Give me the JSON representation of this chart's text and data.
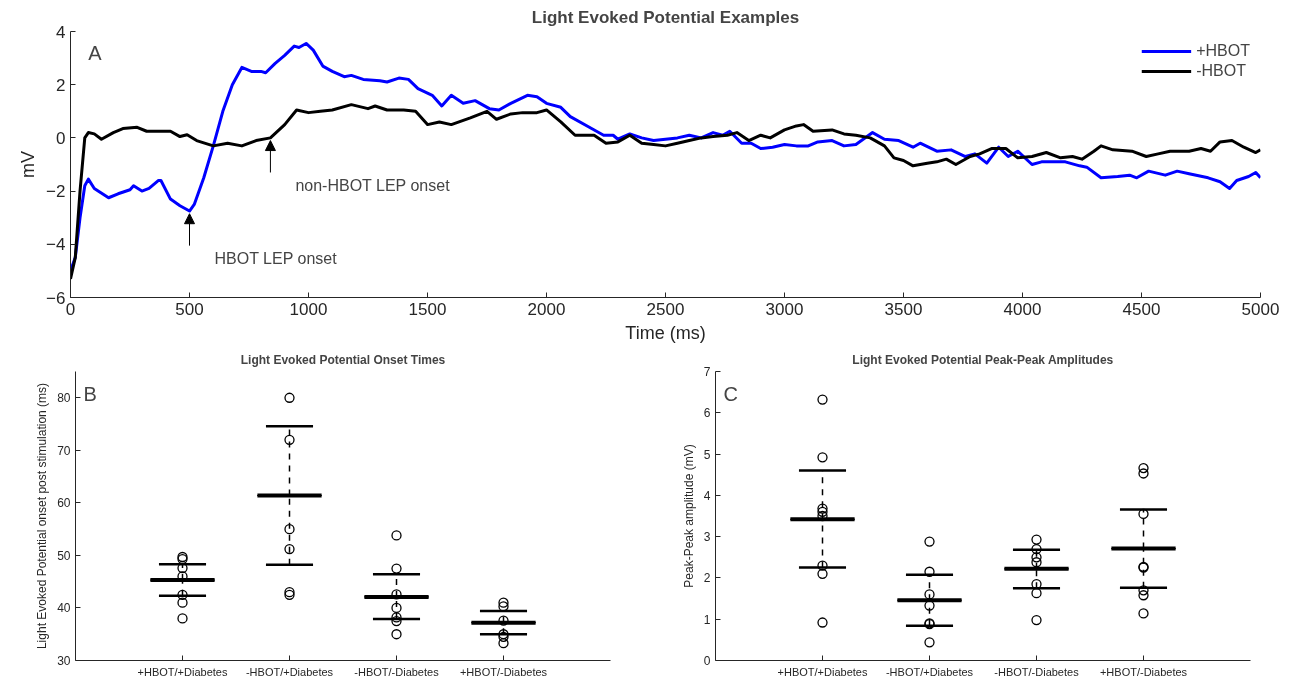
{
  "chart_data": [
    {
      "type": "line",
      "title": "Light Evoked Potential Examples",
      "xlabel": "Time (ms)",
      "ylabel": "mV",
      "xlim": [
        0,
        5000
      ],
      "xticks": [
        0,
        500,
        1000,
        1500,
        2000,
        2500,
        3000,
        3500,
        4000,
        4500,
        5000
      ],
      "ylim": [
        -6,
        4
      ],
      "yticks": [
        -6,
        -4,
        -2,
        0,
        2,
        4
      ],
      "grid": false,
      "legend": "top right",
      "line_style": "solid",
      "annotations": [
        "A",
        {
          "text": "HBOT LEP onset",
          "x": 500,
          "y": -2.75
        },
        {
          "text": "non-HBOT LEP onset",
          "x": 840,
          "y": 0
        }
      ],
      "series": [
        {
          "name": "+HBOT",
          "color": "#0000ff",
          "x": [
            0,
            20,
            40,
            60,
            75,
            100,
            160,
            200,
            250,
            265,
            300,
            330,
            370,
            380,
            420,
            460,
            500,
            520,
            560,
            600,
            640,
            680,
            720,
            760,
            800,
            820,
            860,
            900,
            940,
            960,
            990,
            1020,
            1060,
            1100,
            1150,
            1180,
            1230,
            1300,
            1330,
            1380,
            1420,
            1460,
            1520,
            1560,
            1600,
            1650,
            1700,
            1760,
            1800,
            1850,
            1920,
            1960,
            2000,
            2060,
            2100,
            2180,
            2240,
            2280,
            2300,
            2350,
            2400,
            2450,
            2500,
            2550,
            2600,
            2650,
            2700,
            2740,
            2770,
            2820,
            2860,
            2900,
            2950,
            3000,
            3050,
            3100,
            3140,
            3200,
            3250,
            3300,
            3370,
            3420,
            3480,
            3540,
            3570,
            3640,
            3700,
            3760,
            3800,
            3850,
            3900,
            3940,
            3980,
            4040,
            4080,
            4180,
            4240,
            4270,
            4330,
            4400,
            4450,
            4480,
            4530,
            4600,
            4650,
            4700,
            4780,
            4830,
            4870,
            4900,
            4950,
            4980,
            5000
          ],
          "values": [
            -5.0,
            -4.5,
            -3,
            -1.8,
            -1.55,
            -1.9,
            -2.25,
            -2.1,
            -1.95,
            -1.8,
            -2.0,
            -1.9,
            -1.6,
            -1.6,
            -2.3,
            -2.55,
            -2.75,
            -2.5,
            -1.5,
            -0.3,
            1.0,
            2.0,
            2.65,
            2.5,
            2.5,
            2.45,
            2.8,
            3.1,
            3.45,
            3.4,
            3.55,
            3.3,
            2.7,
            2.5,
            2.3,
            2.35,
            2.2,
            2.15,
            2.1,
            2.25,
            2.2,
            1.85,
            1.6,
            1.2,
            1.6,
            1.3,
            1.4,
            1.1,
            1.05,
            1.3,
            1.6,
            1.55,
            1.3,
            1.15,
            0.8,
            0.4,
            0.1,
            0.1,
            -0.05,
            0.15,
            0,
            -0.1,
            -0.05,
            0.0,
            0.1,
            0.0,
            0.2,
            0.1,
            0.25,
            -0.2,
            -0.2,
            -0.4,
            -0.35,
            -0.25,
            -0.3,
            -0.3,
            -0.15,
            -0.1,
            -0.3,
            -0.25,
            0.2,
            -0.05,
            -0.1,
            -0.35,
            -0.2,
            -0.5,
            -0.45,
            -0.7,
            -0.6,
            -0.95,
            -0.35,
            -0.7,
            -0.5,
            -1.0,
            -0.9,
            -0.9,
            -1.05,
            -1.1,
            -1.5,
            -1.45,
            -1.4,
            -1.5,
            -1.25,
            -1.4,
            -1.25,
            -1.35,
            -1.5,
            -1.65,
            -1.9,
            -1.6,
            -1.45,
            -1.3,
            -1.5
          ]
        },
        {
          "name": "-HBOT",
          "color": "#000000",
          "x": [
            0,
            20,
            40,
            60,
            75,
            100,
            130,
            180,
            220,
            280,
            320,
            380,
            420,
            460,
            490,
            530,
            600,
            660,
            720,
            780,
            840,
            900,
            950,
            1000,
            1050,
            1100,
            1180,
            1250,
            1280,
            1330,
            1400,
            1450,
            1500,
            1550,
            1600,
            1680,
            1750,
            1790,
            1850,
            1900,
            1960,
            2000,
            2060,
            2120,
            2200,
            2250,
            2300,
            2350,
            2400,
            2450,
            2500,
            2550,
            2600,
            2650,
            2700,
            2760,
            2800,
            2850,
            2900,
            2940,
            3000,
            3050,
            3080,
            3120,
            3200,
            3250,
            3300,
            3360,
            3420,
            3460,
            3500,
            3540,
            3600,
            3640,
            3680,
            3720,
            3780,
            3820,
            3870,
            3930,
            3980,
            4040,
            4100,
            4160,
            4210,
            4250,
            4300,
            4330,
            4380,
            4460,
            4520,
            4570,
            4620,
            4700,
            4750,
            4790,
            4830,
            4880,
            4930,
            4980,
            5000
          ],
          "values": [
            -5.3,
            -4.5,
            -2,
            0,
            0.2,
            0.15,
            -0.05,
            0.2,
            0.35,
            0.4,
            0.25,
            0.25,
            0.25,
            0.05,
            0.12,
            -0.1,
            -0.3,
            -0.2,
            -0.3,
            -0.1,
            0,
            0.5,
            1.05,
            0.95,
            1.0,
            1.05,
            1.25,
            1.1,
            1.2,
            1.05,
            1.05,
            1.0,
            0.5,
            0.6,
            0.5,
            0.75,
            1.0,
            0.7,
            0.9,
            0.95,
            0.95,
            1.05,
            0.6,
            0.1,
            0.1,
            -0.2,
            -0.15,
            0.1,
            -0.2,
            -0.25,
            -0.3,
            -0.2,
            -0.1,
            0.0,
            0.05,
            0.1,
            0.2,
            -0.1,
            0.1,
            0.0,
            0.3,
            0.45,
            0.5,
            0.25,
            0.3,
            0.15,
            0.1,
            0.0,
            -0.3,
            -0.75,
            -0.85,
            -1.05,
            -0.95,
            -0.9,
            -0.8,
            -1.0,
            -0.7,
            -0.6,
            -0.4,
            -0.4,
            -0.75,
            -0.7,
            -0.55,
            -0.75,
            -0.7,
            -0.8,
            -0.5,
            -0.3,
            -0.45,
            -0.5,
            -0.7,
            -0.6,
            -0.5,
            -0.5,
            -0.4,
            -0.5,
            -0.15,
            -0.1,
            -0.35,
            -0.55,
            -0.45
          ]
        }
      ]
    },
    {
      "type": "scatter",
      "title": "Light Evoked Potential Onset Times",
      "ylabel": "Light Evoked Potential onset post stimulation (ms)",
      "categories": [
        "+HBOT/+Diabetes",
        "-HBOT/+Diabetes",
        "-HBOT/-Diabetes",
        "+HBOT/-Diabetes"
      ],
      "ylim": [
        30,
        85
      ],
      "yticks": [
        30,
        40,
        50,
        60,
        70,
        80
      ],
      "grid": false,
      "annotations": [
        "B"
      ],
      "series": [
        {
          "type": "scatter",
          "marker": "circle",
          "color": "#000000",
          "x": [
            "+HBOT/+Diabetes",
            "+HBOT/+Diabetes",
            "+HBOT/+Diabetes",
            "+HBOT/+Diabetes",
            "+HBOT/+Diabetes",
            "+HBOT/+Diabetes",
            "+HBOT/+Diabetes",
            "-HBOT/+Diabetes",
            "-HBOT/+Diabetes",
            "-HBOT/+Diabetes",
            "-HBOT/+Diabetes",
            "-HBOT/+Diabetes",
            "-HBOT/+Diabetes",
            "-HBOT/-Diabetes",
            "-HBOT/-Diabetes",
            "-HBOT/-Diabetes",
            "-HBOT/-Diabetes",
            "-HBOT/-Diabetes",
            "-HBOT/-Diabetes",
            "-HBOT/-Diabetes",
            "+HBOT/-Diabetes",
            "+HBOT/-Diabetes",
            "+HBOT/-Diabetes",
            "+HBOT/-Diabetes",
            "+HBOT/-Diabetes",
            "+HBOT/-Diabetes"
          ],
          "values": [
            49.7,
            49.3,
            47.6,
            46,
            42.5,
            41,
            38,
            80,
            72,
            55,
            51.2,
            43,
            42.5,
            53.8,
            47.5,
            42.6,
            40,
            38.2,
            37.5,
            35,
            41,
            40.3,
            37.6,
            35,
            34.5,
            33.3
          ]
        },
        {
          "type": "box",
          "line_style": "dashed",
          "color": "#000000",
          "boxes": [
            {
              "low": 42.3,
              "q1": 45.3,
              "median": 45.3,
              "q3": 45.3,
              "high": 48.3
            },
            {
              "low": 48.2,
              "q1": 61.4,
              "median": 61.4,
              "q3": 61.4,
              "high": 74.6
            },
            {
              "low": 37.9,
              "q1": 42.1,
              "median": 42.1,
              "q3": 42.1,
              "high": 46.4
            },
            {
              "low": 35,
              "q1": 37.2,
              "median": 37.2,
              "q3": 37.2,
              "high": 39.4
            }
          ]
        }
      ]
    },
    {
      "type": "scatter",
      "title": "Light Evoked Potential Peak-Peak Amplitudes",
      "ylabel": "Peak-Peak amplitude (mV)",
      "categories": [
        "+HBOT/+Diabetes",
        "-HBOT/+Diabetes",
        "-HBOT/-Diabetes",
        "+HBOT/-Diabetes"
      ],
      "ylim": [
        0,
        7
      ],
      "yticks": [
        0,
        1,
        2,
        3,
        4,
        5,
        6,
        7
      ],
      "grid": false,
      "annotations": [
        "C"
      ],
      "series": [
        {
          "type": "scatter",
          "marker": "circle",
          "color": "#000000",
          "x": [
            "+HBOT/+Diabetes",
            "+HBOT/+Diabetes",
            "+HBOT/+Diabetes",
            "+HBOT/+Diabetes",
            "+HBOT/+Diabetes",
            "+HBOT/+Diabetes",
            "+HBOT/+Diabetes",
            "+HBOT/+Diabetes",
            "-HBOT/+Diabetes",
            "-HBOT/+Diabetes",
            "-HBOT/+Diabetes",
            "-HBOT/+Diabetes",
            "-HBOT/+Diabetes",
            "-HBOT/+Diabetes",
            "-HBOT/+Diabetes",
            "-HBOT/-Diabetes",
            "-HBOT/-Diabetes",
            "-HBOT/-Diabetes",
            "-HBOT/-Diabetes",
            "-HBOT/-Diabetes",
            "-HBOT/-Diabetes",
            "-HBOT/-Diabetes",
            "+HBOT/-Diabetes",
            "+HBOT/-Diabetes",
            "+HBOT/-Diabetes",
            "+HBOT/-Diabetes",
            "+HBOT/-Diabetes",
            "+HBOT/-Diabetes",
            "+HBOT/-Diabetes",
            "+HBOT/-Diabetes"
          ],
          "values": [
            6.32,
            4.92,
            3.68,
            3.6,
            3.5,
            2.3,
            2.1,
            0.92,
            2.88,
            2.15,
            1.6,
            1.33,
            0.9,
            0.88,
            0.44,
            2.93,
            2.7,
            2.5,
            2.38,
            1.85,
            1.63,
            0.98,
            4.66,
            4.53,
            3.55,
            2.27,
            2.25,
            1.7,
            1.58,
            1.14
          ]
        },
        {
          "type": "box",
          "line_style": "dashed",
          "color": "#000000",
          "boxes": [
            {
              "low": 2.25,
              "q1": 3.42,
              "median": 3.42,
              "q3": 3.42,
              "high": 4.6
            },
            {
              "low": 0.84,
              "q1": 1.46,
              "median": 1.46,
              "q3": 1.46,
              "high": 2.08
            },
            {
              "low": 1.75,
              "q1": 2.22,
              "median": 2.22,
              "q3": 2.22,
              "high": 2.68
            },
            {
              "low": 1.76,
              "q1": 2.71,
              "median": 2.71,
              "q3": 2.71,
              "high": 3.66
            }
          ]
        }
      ]
    }
  ]
}
